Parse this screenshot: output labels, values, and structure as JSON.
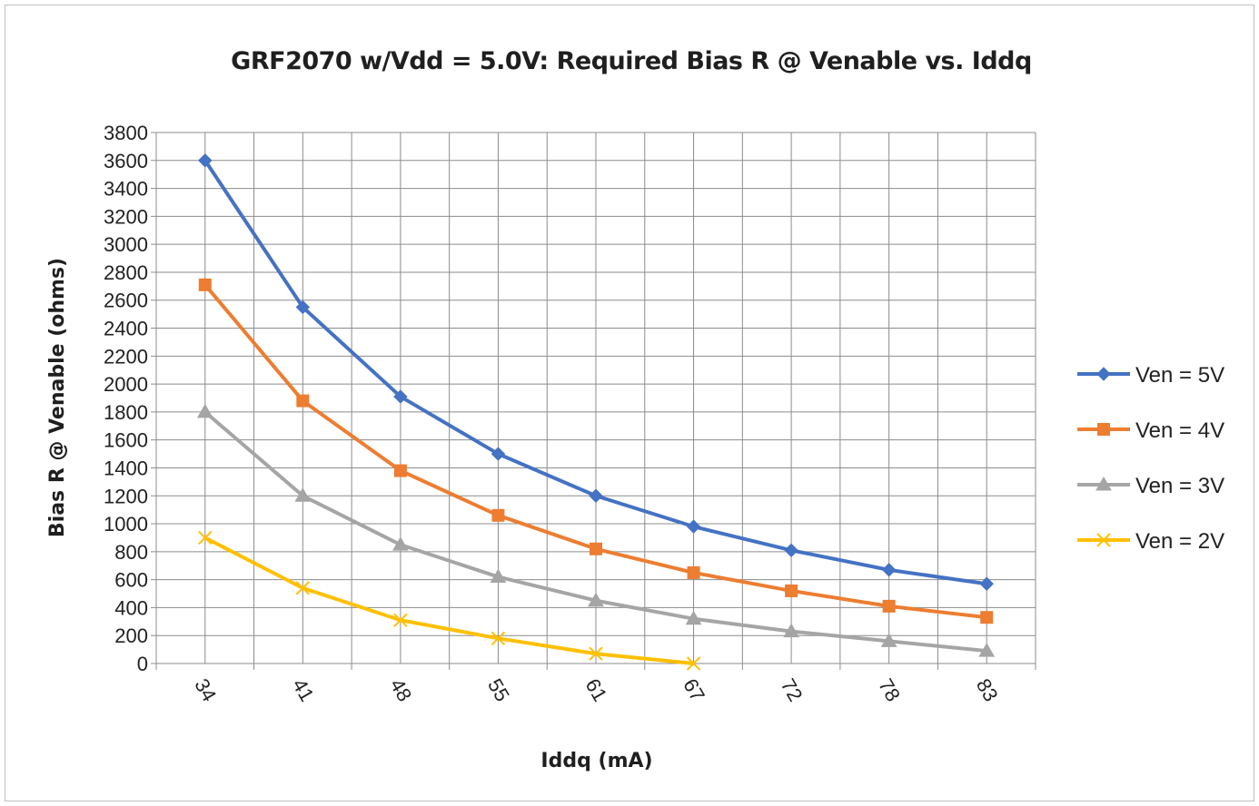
{
  "chart_data": {
    "type": "line",
    "title": "GRF2070 w/Vdd = 5.0V:  Required Bias R @ Venable vs. Iddq",
    "xlabel": "Iddq (mA)",
    "ylabel": "Bias R @ Venable (ohms)",
    "categories": [
      "34",
      "41",
      "48",
      "55",
      "61",
      "67",
      "72",
      "78",
      "83"
    ],
    "ylim": [
      0,
      3800
    ],
    "ytick_step": 200,
    "grid": true,
    "legend_position": "right",
    "series": [
      {
        "name": "Ven = 5V",
        "color": "#4472c4",
        "marker": "diamond",
        "values": [
          3600,
          2550,
          1910,
          1500,
          1200,
          980,
          810,
          670,
          570
        ]
      },
      {
        "name": "Ven = 4V",
        "color": "#ed7d31",
        "marker": "square",
        "values": [
          2710,
          1880,
          1380,
          1060,
          820,
          650,
          520,
          410,
          330
        ]
      },
      {
        "name": "Ven = 3V",
        "color": "#a5a5a5",
        "marker": "triangle",
        "values": [
          1800,
          1200,
          850,
          620,
          450,
          320,
          230,
          160,
          90
        ]
      },
      {
        "name": "Ven = 2V",
        "color": "#ffc000",
        "marker": "x",
        "values": [
          900,
          540,
          310,
          180,
          70,
          0,
          null,
          null,
          null
        ]
      }
    ]
  }
}
